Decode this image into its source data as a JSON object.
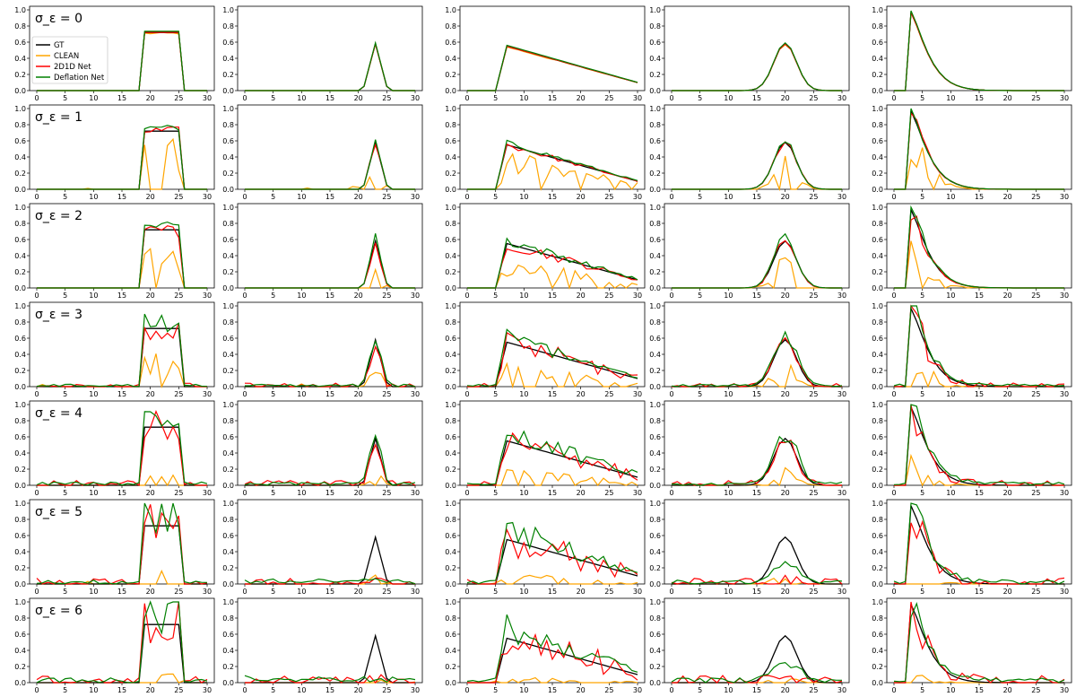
{
  "figure": {
    "colors": {
      "GT": "#000000",
      "CLEAN": "#FFA500",
      "2D1D Net": "#FF0000",
      "Deflation Net": "#008000"
    },
    "row_labels": [
      "σ_ε = 0",
      "σ_ε = 1",
      "σ_ε = 2",
      "σ_ε = 3",
      "σ_ε = 4",
      "σ_ε = 5",
      "σ_ε = 6"
    ],
    "legend": [
      "GT",
      "CLEAN",
      "2D1D Net",
      "Deflation Net"
    ]
  },
  "chart_data": {
    "type": "line",
    "layout": "grid of small multiples: 7 rows (noise level σ_ε = 0..6) × 5 columns (test signals)",
    "xlim": [
      0,
      30
    ],
    "ylim": [
      0,
      1.0
    ],
    "xticks": [
      0,
      5,
      10,
      15,
      20,
      25,
      30
    ],
    "yticks": [
      0.0,
      0.2,
      0.4,
      0.6,
      0.8,
      1.0
    ],
    "xticklabels": [
      "0",
      "5",
      "10",
      "15",
      "20",
      "25",
      "30"
    ],
    "yticklabels": [
      "0.0",
      "0.2",
      "0.4",
      "0.6",
      "0.8",
      "1.0"
    ],
    "grid": false,
    "legend_location": "upper-left of first panel",
    "series_names": [
      "GT",
      "CLEAN",
      "2D1D Net",
      "Deflation Net"
    ],
    "ground_truth_per_column": [
      "rectangle: 0.72 on x=19..25, 0 elsewhere",
      "narrow peak: 0.58 at x=23, width ≈ 2",
      "sharp rise at x≈5 to 0.55 at x≈7, then linear decay to ≈0.10 at x=30",
      "gaussian: peak 0.58 at x=20, σ ≈ 2",
      "sharp rise at x≈2 to 0.97 at x≈3, then decay to ≈0 by x≈15"
    ],
    "panels_note": "Per panel: GT (black), CLEAN (orange), 2D1D Net (red), Deflation Net (green). CLEAN degrades and becomes sparse/spiky as σ_ε grows; the networks stay close to GT at low noise and drift at high noise."
  }
}
